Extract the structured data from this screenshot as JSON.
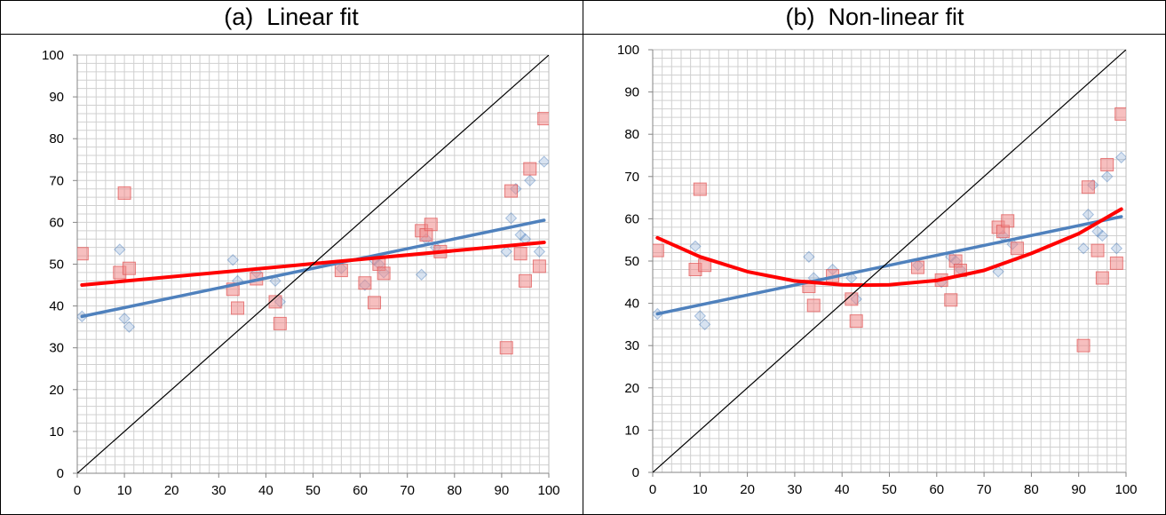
{
  "panels": [
    {
      "title": "(a)  Linear fit"
    },
    {
      "title": "(b)  Non-linear fit"
    }
  ],
  "colors": {
    "blue_series": "#4f81bd",
    "red_series": "#ff0000",
    "red_marker": "#f08a8a",
    "diagonal": "#000000",
    "grid": "#d0d0d0"
  },
  "chart_data": [
    {
      "type": "scatter",
      "title": "(a)  Linear fit",
      "xlabel": "",
      "ylabel": "",
      "xlim": [
        0,
        100
      ],
      "ylim": [
        0,
        100
      ],
      "x_ticks": [
        0,
        10,
        20,
        30,
        40,
        50,
        60,
        70,
        80,
        90,
        100
      ],
      "y_ticks": [
        0,
        10,
        20,
        30,
        40,
        50,
        60,
        70,
        80,
        90,
        100
      ],
      "grid": true,
      "legend": "none",
      "series": [
        {
          "marker": "diamond",
          "color": "#4f81bd",
          "points": [
            [
              1,
              37.5
            ],
            [
              9,
              53.5
            ],
            [
              10,
              37
            ],
            [
              11,
              35
            ],
            [
              33,
              51
            ],
            [
              34,
              46
            ],
            [
              38,
              48
            ],
            [
              42,
              46
            ],
            [
              43,
              41
            ],
            [
              56,
              49
            ],
            [
              61,
              45
            ],
            [
              63,
              51
            ],
            [
              64,
              50
            ],
            [
              65,
              48
            ],
            [
              73,
              47.5
            ],
            [
              74,
              56
            ],
            [
              76,
              54
            ],
            [
              91,
              53
            ],
            [
              92,
              61
            ],
            [
              93,
              68
            ],
            [
              94,
              57
            ],
            [
              95,
              56
            ],
            [
              96,
              70
            ],
            [
              98,
              53
            ],
            [
              99,
              74.5
            ]
          ]
        },
        {
          "marker": "square",
          "color": "#f08a8a",
          "points": [
            [
              1,
              52.5
            ],
            [
              9,
              48
            ],
            [
              10,
              67
            ],
            [
              11,
              49
            ],
            [
              33,
              44
            ],
            [
              34,
              39.5
            ],
            [
              38,
              46.5
            ],
            [
              42,
              41
            ],
            [
              43,
              35.8
            ],
            [
              56,
              48.5
            ],
            [
              61,
              45.5
            ],
            [
              63,
              40.8
            ],
            [
              64,
              50
            ],
            [
              65,
              47.8
            ],
            [
              73,
              58
            ],
            [
              74,
              57
            ],
            [
              75,
              59.5
            ],
            [
              77,
              53
            ],
            [
              91,
              30
            ],
            [
              92,
              67.5
            ],
            [
              94,
              52.5
            ],
            [
              95,
              46
            ],
            [
              96,
              72.8
            ],
            [
              98,
              49.5
            ],
            [
              99,
              84.8
            ]
          ]
        },
        {
          "kind": "line",
          "color": "#4f81bd",
          "points": [
            [
              1,
              37.5
            ],
            [
              99,
              60.5
            ]
          ]
        },
        {
          "kind": "line",
          "color": "#ff0000",
          "points": [
            [
              1,
              45
            ],
            [
              99,
              55.2
            ]
          ]
        },
        {
          "kind": "line",
          "color": "#000000",
          "points": [
            [
              0,
              0
            ],
            [
              100,
              100
            ]
          ]
        }
      ]
    },
    {
      "type": "scatter",
      "title": "(b)  Non-linear fit",
      "xlabel": "",
      "ylabel": "",
      "xlim": [
        0,
        100
      ],
      "ylim": [
        0,
        100
      ],
      "x_ticks": [
        0,
        10,
        20,
        30,
        40,
        50,
        60,
        70,
        80,
        90,
        100
      ],
      "y_ticks": [
        0,
        10,
        20,
        30,
        40,
        50,
        60,
        70,
        80,
        90,
        100
      ],
      "grid": true,
      "legend": "none",
      "series": [
        {
          "marker": "diamond",
          "color": "#4f81bd",
          "points": [
            [
              1,
              37.5
            ],
            [
              9,
              53.5
            ],
            [
              10,
              37
            ],
            [
              11,
              35
            ],
            [
              33,
              51
            ],
            [
              34,
              46
            ],
            [
              38,
              48
            ],
            [
              42,
              46
            ],
            [
              43,
              41
            ],
            [
              56,
              49
            ],
            [
              61,
              45
            ],
            [
              63,
              51
            ],
            [
              64,
              50
            ],
            [
              65,
              48
            ],
            [
              73,
              47.5
            ],
            [
              74,
              56
            ],
            [
              76,
              54
            ],
            [
              91,
              53
            ],
            [
              92,
              61
            ],
            [
              93,
              68
            ],
            [
              94,
              57
            ],
            [
              95,
              56
            ],
            [
              96,
              70
            ],
            [
              98,
              53
            ],
            [
              99,
              74.5
            ]
          ]
        },
        {
          "marker": "square",
          "color": "#f08a8a",
          "points": [
            [
              1,
              52.5
            ],
            [
              9,
              48
            ],
            [
              10,
              67
            ],
            [
              11,
              49
            ],
            [
              33,
              44
            ],
            [
              34,
              39.5
            ],
            [
              38,
              46.5
            ],
            [
              42,
              41
            ],
            [
              43,
              35.8
            ],
            [
              56,
              48.5
            ],
            [
              61,
              45.5
            ],
            [
              63,
              40.8
            ],
            [
              64,
              50
            ],
            [
              65,
              47.8
            ],
            [
              73,
              58
            ],
            [
              74,
              57
            ],
            [
              75,
              59.5
            ],
            [
              77,
              53
            ],
            [
              91,
              30
            ],
            [
              92,
              67.5
            ],
            [
              94,
              52.5
            ],
            [
              95,
              46
            ],
            [
              96,
              72.8
            ],
            [
              98,
              49.5
            ],
            [
              99,
              84.8
            ]
          ]
        },
        {
          "kind": "line",
          "color": "#4f81bd",
          "points": [
            [
              1,
              37.5
            ],
            [
              99,
              60.5
            ]
          ]
        },
        {
          "kind": "line",
          "color": "#ff0000",
          "points": [
            [
              1,
              55.5
            ],
            [
              10,
              51
            ],
            [
              20,
              47.5
            ],
            [
              30,
              45.3
            ],
            [
              40,
              44.4
            ],
            [
              45,
              44.3
            ],
            [
              50,
              44.4
            ],
            [
              60,
              45.4
            ],
            [
              70,
              47.8
            ],
            [
              80,
              51.8
            ],
            [
              90,
              56.5
            ],
            [
              99,
              62.3
            ]
          ]
        },
        {
          "kind": "line",
          "color": "#000000",
          "points": [
            [
              0,
              0
            ],
            [
              100,
              100
            ]
          ]
        }
      ]
    }
  ]
}
